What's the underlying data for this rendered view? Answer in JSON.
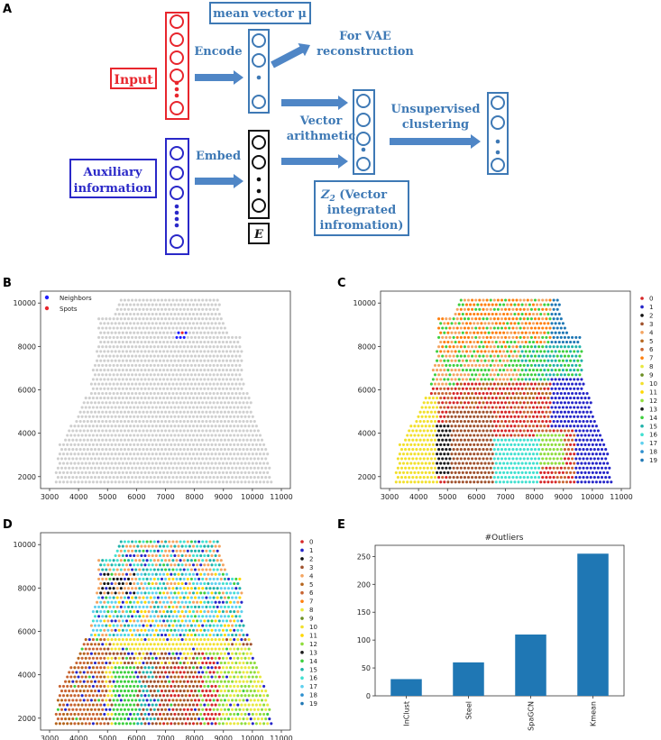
{
  "panel_labels": {
    "a": "A",
    "b": "B",
    "c": "C",
    "d": "D",
    "e": "E"
  },
  "diagram": {
    "input_label": "Input",
    "aux_label_line1": "Auxiliary",
    "aux_label_line2": "information",
    "encode_label": "Encode",
    "embed_label": "Embed",
    "mean_vector_label": "mean vector μ",
    "vae_line1": "For VAE",
    "vae_line2": "reconstruction",
    "vector_arith_line1": "Vector",
    "vector_arith_line2": "arithmetic",
    "unsup_line1": "Unsupervised",
    "unsup_line2": "clustering",
    "z2_symbol": "Z",
    "z2_sub": "2",
    "z2_line1_rest": " (Vector",
    "z2_line2": "integrated",
    "z2_line3": "infromation)",
    "e_box_label": "E",
    "colors": {
      "red": "#e8262d",
      "blue": "#2a28c8",
      "steel": "#3e79b5",
      "arrow": "#4f86c6"
    }
  },
  "spatial_axes": {
    "x_ticks": [
      3000,
      4000,
      5000,
      6000,
      7000,
      8000,
      9000,
      10000,
      11000
    ],
    "y_ticks": [
      2000,
      4000,
      6000,
      8000,
      10000
    ]
  },
  "panel_b": {
    "legend": [
      {
        "label": "Neighbors",
        "color": "#1f1fff"
      },
      {
        "label": "Spots",
        "color": "#e8262d"
      }
    ],
    "base_color": "#cfcfcf"
  },
  "cluster_legend": {
    "labels": [
      "0",
      "1",
      "2",
      "3",
      "4",
      "5",
      "6",
      "7",
      "8",
      "9",
      "10",
      "11",
      "12",
      "13",
      "14",
      "15",
      "16",
      "17",
      "18",
      "19"
    ],
    "colors": [
      "#d62728",
      "#2525c8",
      "#111111",
      "#a0522d",
      "#f4a460",
      "#b5651d",
      "#c86432",
      "#ff7f0e",
      "#e8e840",
      "#6b8e23",
      "#f2e02c",
      "#ffd700",
      "#8fdc3c",
      "#1a1a1a",
      "#3ecf3e",
      "#20b2aa",
      "#40e0d0",
      "#5ed0ef",
      "#2c8fcf",
      "#1f77b4"
    ]
  },
  "chart_data": {
    "type": "bar",
    "title": "#Outliers",
    "categories": [
      "InClust",
      "Steel",
      "SpaGCN",
      "Kmean"
    ],
    "values": [
      30,
      60,
      110,
      255
    ],
    "ylim": [
      0,
      270
    ],
    "yticks": [
      0,
      50,
      100,
      150,
      200,
      250
    ],
    "color": "#1f77b4"
  }
}
